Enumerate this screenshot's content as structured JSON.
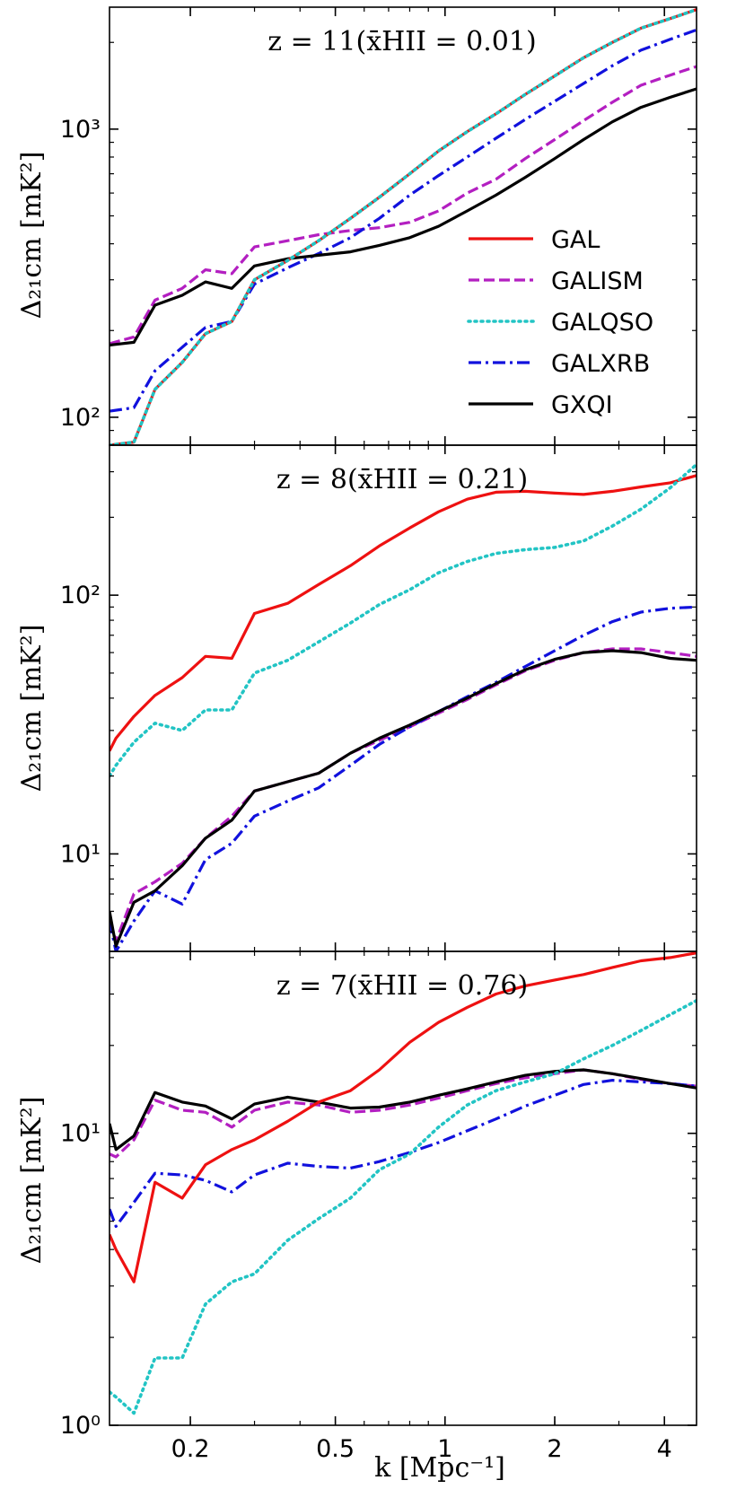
{
  "figure": {
    "xlabel": "k [Mpc⁻¹]",
    "ylabel": "Δ₂₁cm [mK²]"
  },
  "colors": {
    "GAL": "#ee1111",
    "GALISM": "#b31fc1",
    "GALQSO": "#22c4c4",
    "GALXRB": "#1111dd",
    "GXQI": "#000000"
  },
  "legend": {
    "placement": "right",
    "entries": [
      "GAL",
      "GALISM",
      "GALQSO",
      "GALXRB",
      "GXQI"
    ]
  },
  "chart_data": [
    {
      "type": "line",
      "title": "z = 11(x̄HII = 0.01)",
      "xscale": "log",
      "yscale": "log",
      "xlim": [
        0.12,
        4.9
      ],
      "ylim": [
        80,
        2650
      ],
      "xticks": [
        {
          "value": 0.2,
          "label": "0.2"
        },
        {
          "value": 0.5,
          "label": "0.5"
        },
        {
          "value": 1,
          "label": "1"
        },
        {
          "value": 2,
          "label": "2"
        },
        {
          "value": 4,
          "label": "4"
        }
      ],
      "yticks": [
        {
          "value": 100,
          "label": "10²"
        },
        {
          "value": 1000,
          "label": "10³"
        }
      ],
      "x": [
        0.12,
        0.14,
        0.16,
        0.19,
        0.22,
        0.26,
        0.3,
        0.37,
        0.45,
        0.55,
        0.66,
        0.8,
        0.96,
        1.15,
        1.38,
        1.66,
        2.0,
        2.4,
        2.88,
        3.45,
        4.15,
        4.9
      ],
      "series": [
        {
          "name": "GAL",
          "values": [
            80,
            82,
            125,
            155,
            195,
            215,
            300,
            350,
            410,
            490,
            580,
            700,
            840,
            980,
            1130,
            1320,
            1530,
            1770,
            2000,
            2240,
            2420,
            2600
          ]
        },
        {
          "name": "GALISM",
          "values": [
            180,
            190,
            255,
            280,
            325,
            315,
            390,
            410,
            430,
            445,
            455,
            475,
            520,
            600,
            670,
            790,
            920,
            1070,
            1240,
            1420,
            1540,
            1650
          ]
        },
        {
          "name": "GALQSO",
          "values": [
            80,
            82,
            125,
            155,
            195,
            215,
            300,
            350,
            410,
            490,
            580,
            700,
            840,
            980,
            1130,
            1320,
            1530,
            1770,
            2000,
            2240,
            2420,
            2600
          ]
        },
        {
          "name": "GALXRB",
          "values": [
            105,
            108,
            145,
            175,
            205,
            215,
            290,
            330,
            370,
            420,
            490,
            590,
            690,
            800,
            930,
            1080,
            1250,
            1440,
            1660,
            1880,
            2050,
            2210
          ]
        },
        {
          "name": "GXQI",
          "values": [
            178,
            182,
            245,
            265,
            295,
            280,
            335,
            355,
            365,
            375,
            395,
            420,
            460,
            520,
            590,
            680,
            790,
            920,
            1060,
            1190,
            1290,
            1380
          ]
        }
      ]
    },
    {
      "type": "line",
      "title": "z = 8(x̄HII = 0.21)",
      "xscale": "log",
      "yscale": "log",
      "xlim": [
        0.12,
        4.9
      ],
      "ylim": [
        4.2,
        380
      ],
      "xticks": [
        {
          "value": 0.2,
          "label": "0.2"
        },
        {
          "value": 0.5,
          "label": "0.5"
        },
        {
          "value": 1,
          "label": "1"
        },
        {
          "value": 2,
          "label": "2"
        },
        {
          "value": 4,
          "label": "4"
        }
      ],
      "yticks": [
        {
          "value": 10,
          "label": "10¹"
        },
        {
          "value": 100,
          "label": "10²"
        }
      ],
      "x": [
        0.12,
        0.125,
        0.14,
        0.16,
        0.19,
        0.22,
        0.26,
        0.3,
        0.37,
        0.45,
        0.55,
        0.66,
        0.8,
        0.96,
        1.15,
        1.38,
        1.66,
        2.0,
        2.4,
        2.88,
        3.45,
        4.15,
        4.9
      ],
      "series": [
        {
          "name": "GAL",
          "values": [
            25,
            28,
            34,
            41,
            48,
            58,
            57,
            85,
            93,
            110,
            130,
            155,
            182,
            210,
            235,
            250,
            252,
            248,
            245,
            252,
            262,
            272,
            290
          ]
        },
        {
          "name": "GALISM",
          "values": [
            5.5,
            4.6,
            7.0,
            7.8,
            9.2,
            11.5,
            14.0,
            17.5,
            19.0,
            20.5,
            24.5,
            27.5,
            31.0,
            35.0,
            39.5,
            45.0,
            51.0,
            56.0,
            60.0,
            62.0,
            62.0,
            60.0,
            58.0
          ]
        },
        {
          "name": "GALQSO",
          "values": [
            20,
            22,
            27,
            32,
            30,
            36,
            36,
            50,
            56,
            66,
            78,
            92,
            105,
            122,
            135,
            145,
            150,
            153,
            162,
            185,
            215,
            260,
            320
          ]
        },
        {
          "name": "GALXRB",
          "values": [
            5.5,
            4.2,
            5.5,
            7.2,
            6.4,
            9.5,
            11.0,
            14.0,
            16.0,
            18.0,
            22.0,
            26.5,
            31.0,
            35.5,
            40.5,
            46.0,
            53.0,
            61.0,
            70.0,
            79.0,
            86.0,
            89.0,
            90.0
          ]
        },
        {
          "name": "GXQI",
          "values": [
            6.0,
            4.4,
            6.5,
            7.2,
            9.0,
            11.5,
            13.5,
            17.5,
            19.0,
            20.5,
            24.5,
            28.0,
            31.5,
            35.5,
            40.0,
            45.5,
            51.5,
            56.5,
            60.0,
            61.0,
            60.0,
            57.0,
            56.0
          ]
        }
      ]
    },
    {
      "type": "line",
      "title": "z = 7(x̄HII = 0.76)",
      "xscale": "log",
      "yscale": "log",
      "xlim": [
        0.12,
        4.9
      ],
      "ylim": [
        1.0,
        42
      ],
      "xticks": [
        {
          "value": 0.2,
          "label": "0.2"
        },
        {
          "value": 0.5,
          "label": "0.5"
        },
        {
          "value": 1,
          "label": "1"
        },
        {
          "value": 2,
          "label": "2"
        },
        {
          "value": 4,
          "label": "4"
        }
      ],
      "yticks": [
        {
          "value": 1,
          "label": "10⁰"
        },
        {
          "value": 10,
          "label": "10¹"
        }
      ],
      "x": [
        0.12,
        0.125,
        0.14,
        0.16,
        0.19,
        0.22,
        0.26,
        0.3,
        0.37,
        0.45,
        0.55,
        0.66,
        0.8,
        0.96,
        1.15,
        1.38,
        1.66,
        2.0,
        2.4,
        2.88,
        3.45,
        4.15,
        4.9
      ],
      "series": [
        {
          "name": "GAL",
          "values": [
            4.5,
            4.0,
            3.1,
            6.8,
            6.0,
            7.8,
            8.8,
            9.5,
            11.0,
            12.8,
            14.0,
            16.5,
            20.5,
            24.0,
            27.0,
            30.0,
            32.0,
            33.5,
            35.0,
            37.0,
            39.0,
            40.0,
            41.5
          ]
        },
        {
          "name": "GALISM",
          "values": [
            8.5,
            8.3,
            9.5,
            13.0,
            12.0,
            11.8,
            10.5,
            12.0,
            12.8,
            12.5,
            11.8,
            12.0,
            12.5,
            13.2,
            14.0,
            14.8,
            15.5,
            16.0,
            16.5,
            16.0,
            15.3,
            14.8,
            14.5
          ]
        },
        {
          "name": "GALQSO",
          "values": [
            1.3,
            1.25,
            1.1,
            1.7,
            1.7,
            2.6,
            3.1,
            3.3,
            4.3,
            5.1,
            6.0,
            7.5,
            8.5,
            10.5,
            12.5,
            14.0,
            15.0,
            16.0,
            18.0,
            20.0,
            22.5,
            25.5,
            28.5
          ]
        },
        {
          "name": "GALXRB",
          "values": [
            5.5,
            4.8,
            5.8,
            7.3,
            7.2,
            6.9,
            6.3,
            7.2,
            7.9,
            7.7,
            7.6,
            8.0,
            8.6,
            9.3,
            10.2,
            11.2,
            12.4,
            13.5,
            14.7,
            15.2,
            15.0,
            14.8,
            14.5
          ]
        },
        {
          "name": "GXQI",
          "values": [
            10.8,
            8.8,
            9.8,
            13.8,
            12.8,
            12.4,
            11.2,
            12.6,
            13.3,
            12.8,
            12.2,
            12.3,
            12.8,
            13.5,
            14.2,
            15.0,
            15.8,
            16.3,
            16.5,
            16.0,
            15.4,
            14.8,
            14.3
          ]
        }
      ]
    }
  ]
}
